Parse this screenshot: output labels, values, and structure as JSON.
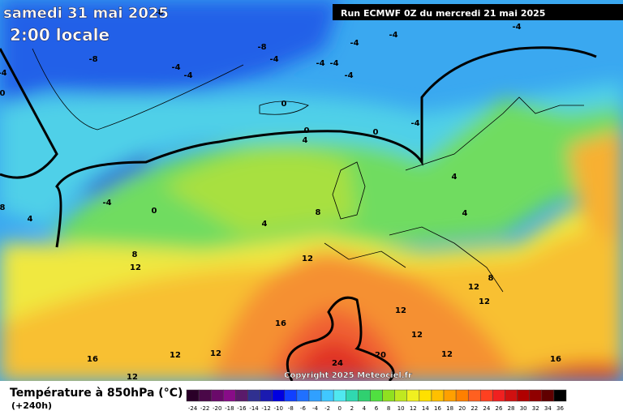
{
  "header": {
    "date": "samedi 31 mai 2025",
    "time": "2:00 locale",
    "run": "Run ECMWF 0Z du mercredi 21 mai 2025",
    "copyright": "Copyright 2025 Meteociel.fr"
  },
  "map": {
    "contour_labels": [
      -8,
      -8,
      -4,
      -4,
      -8,
      -4,
      -4,
      -4,
      -4,
      -4,
      -4,
      -4,
      0,
      0,
      4,
      0,
      -4,
      -4,
      0,
      4,
      8,
      0,
      -4,
      4,
      8,
      4,
      4,
      8,
      12,
      12,
      8,
      12,
      12,
      12,
      16,
      12,
      12,
      16,
      12,
      12,
      12,
      24,
      20,
      16
    ]
  },
  "legend": {
    "title": "Température à 850hPa (°C)",
    "lead": "(+240h)",
    "values": [
      -24,
      -22,
      -20,
      -18,
      -16,
      -14,
      -12,
      -10,
      -8,
      -6,
      -4,
      -2,
      0,
      2,
      4,
      6,
      8,
      10,
      12,
      14,
      16,
      18,
      20,
      22,
      24,
      26,
      28,
      30,
      32,
      34,
      36
    ],
    "colors": [
      "#2a0028",
      "#4a0848",
      "#6a0a6a",
      "#880c88",
      "#5a1a6a",
      "#303090",
      "#1a1ab0",
      "#0000e0",
      "#1040ff",
      "#2070ff",
      "#30a0ff",
      "#40c8ff",
      "#50e8f0",
      "#30d8b0",
      "#30d070",
      "#50e040",
      "#90e020",
      "#c0e820",
      "#f0f020",
      "#ffe000",
      "#ffc000",
      "#ffa000",
      "#ff8000",
      "#ff6020",
      "#ff4020",
      "#f02020",
      "#d01010",
      "#b00000",
      "#900000",
      "#600000",
      "#000000"
    ]
  }
}
